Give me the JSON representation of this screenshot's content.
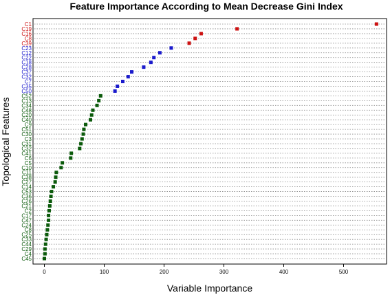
{
  "chart_data": {
    "type": "dot",
    "title": "Feature Importance According to Mean Decrease Gini Index",
    "xlabel": "Variable Importance",
    "ylabel": "Topological Features",
    "xlim": [
      0,
      560
    ],
    "xticks": [
      0,
      100,
      200,
      300,
      400,
      500
    ],
    "grid": "horizontal dotted",
    "colors": {
      "red": "#cc1111",
      "blue": "#1a1acc",
      "green": "#0b5a0b"
    },
    "points": [
      {
        "label": "C1",
        "value": 555,
        "color": "red"
      },
      {
        "label": "C19",
        "value": 322,
        "color": "red"
      },
      {
        "label": "C16",
        "value": 262,
        "color": "red"
      },
      {
        "label": "C8",
        "value": 252,
        "color": "red"
      },
      {
        "label": "C39",
        "value": 242,
        "color": "red"
      },
      {
        "label": "C23",
        "value": 212,
        "color": "blue"
      },
      {
        "label": "C12",
        "value": 193,
        "color": "blue"
      },
      {
        "label": "C22",
        "value": 183,
        "color": "blue"
      },
      {
        "label": "C18",
        "value": 178,
        "color": "blue"
      },
      {
        "label": "C28",
        "value": 166,
        "color": "blue"
      },
      {
        "label": "C37",
        "value": 146,
        "color": "blue"
      },
      {
        "label": "C32",
        "value": 140,
        "color": "blue"
      },
      {
        "label": "C7",
        "value": 131,
        "color": "blue"
      },
      {
        "label": "C35",
        "value": 122,
        "color": "blue"
      },
      {
        "label": "C50",
        "value": 118,
        "color": "blue"
      },
      {
        "label": "C52",
        "value": 94,
        "color": "green"
      },
      {
        "label": "C13",
        "value": 91,
        "color": "green"
      },
      {
        "label": "C34",
        "value": 88,
        "color": "green"
      },
      {
        "label": "C48",
        "value": 81,
        "color": "green"
      },
      {
        "label": "C20",
        "value": 79,
        "color": "green"
      },
      {
        "label": "C40",
        "value": 77,
        "color": "green"
      },
      {
        "label": "C9",
        "value": 69,
        "color": "green"
      },
      {
        "label": "C51",
        "value": 66,
        "color": "green"
      },
      {
        "label": "C30",
        "value": 65,
        "color": "green"
      },
      {
        "label": "C3",
        "value": 63,
        "color": "green"
      },
      {
        "label": "C31",
        "value": 61,
        "color": "green"
      },
      {
        "label": "C32",
        "value": 59,
        "color": "green"
      },
      {
        "label": "C41",
        "value": 45,
        "color": "green"
      },
      {
        "label": "C6",
        "value": 44,
        "color": "green"
      },
      {
        "label": "C5",
        "value": 30,
        "color": "green"
      },
      {
        "label": "C10",
        "value": 28,
        "color": "green"
      },
      {
        "label": "C11",
        "value": 20,
        "color": "green"
      },
      {
        "label": "C38",
        "value": 19,
        "color": "green"
      },
      {
        "label": "C27",
        "value": 18,
        "color": "green"
      },
      {
        "label": "C14",
        "value": 15,
        "color": "green"
      },
      {
        "label": "C53",
        "value": 12,
        "color": "green"
      },
      {
        "label": "C36",
        "value": 11,
        "color": "green"
      },
      {
        "label": "C26",
        "value": 10,
        "color": "green"
      },
      {
        "label": "C21",
        "value": 9,
        "color": "green"
      },
      {
        "label": "C2",
        "value": 8,
        "color": "green"
      },
      {
        "label": "C17",
        "value": 7,
        "color": "green"
      },
      {
        "label": "C47",
        "value": 7,
        "color": "green"
      },
      {
        "label": "C24",
        "value": 6,
        "color": "green"
      },
      {
        "label": "C8",
        "value": 5,
        "color": "green"
      },
      {
        "label": "C25",
        "value": 4,
        "color": "green"
      },
      {
        "label": "C33",
        "value": 3,
        "color": "green"
      },
      {
        "label": "C44",
        "value": 2,
        "color": "green"
      },
      {
        "label": "C29",
        "value": 1,
        "color": "green"
      },
      {
        "label": "C4",
        "value": 1,
        "color": "green"
      },
      {
        "label": "C45",
        "value": 0,
        "color": "green"
      }
    ]
  }
}
